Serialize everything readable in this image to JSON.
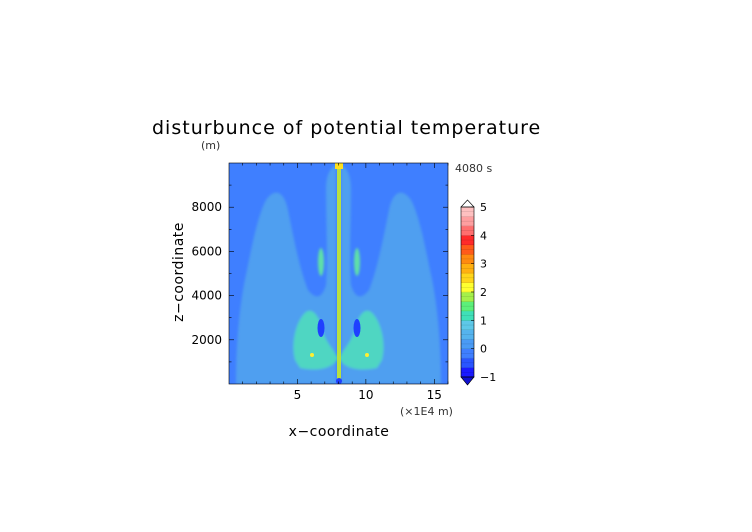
{
  "chart_data": {
    "type": "heatmap",
    "title": "disturbunce of potential temperature",
    "ylabel": "z−coordinate",
    "yunit": "(m)",
    "xlabel": "x−coordinate",
    "xunit": "(×1E4 m)",
    "time_label": "4080 s",
    "xlim": [
      0,
      16
    ],
    "ylim": [
      0,
      10000
    ],
    "x_ticks": [
      "5",
      "10",
      "15"
    ],
    "y_ticks": [
      "2000",
      "4000",
      "6000",
      "8000"
    ],
    "colorbar": {
      "min": -1,
      "max": 5,
      "step": 0.25,
      "tick_labels": [
        "5",
        "4",
        "3",
        "2",
        "1",
        "0",
        "−1"
      ],
      "colors": [
        "#1a1aff",
        "#2a55ff",
        "#3f7fff",
        "#4a9bf5",
        "#55b3ee",
        "#5ec8e8",
        "#3fe0b8",
        "#5cf07a",
        "#a5f04a",
        "#ffff30",
        "#ffd51a",
        "#ffb010",
        "#ff8a10",
        "#ff5a1a",
        "#ff2a2a",
        "#ff6f6f",
        "#ff9fa0",
        "#ffc0c0"
      ]
    },
    "features": [
      {
        "kind": "background",
        "value": 0.1,
        "x": [
          0,
          16
        ],
        "z": [
          0,
          10000
        ]
      },
      {
        "kind": "plume",
        "side": "left",
        "value": 0.3,
        "x_range": [
          1.0,
          7.6
        ],
        "z_range": [
          0,
          8400
        ]
      },
      {
        "kind": "plume",
        "side": "right",
        "value": 0.3,
        "x_range": [
          8.4,
          15.0
        ],
        "z_range": [
          0,
          8400
        ]
      },
      {
        "kind": "core",
        "side": "left",
        "value": 1.0,
        "x_range": [
          4.5,
          7.7
        ],
        "z_range": [
          700,
          3300
        ]
      },
      {
        "kind": "core",
        "side": "right",
        "value": 1.0,
        "x_range": [
          8.3,
          11.5
        ],
        "z_range": [
          700,
          3300
        ]
      },
      {
        "kind": "updraft",
        "value": 2.0,
        "x": 8.0,
        "z_range": [
          300,
          10000
        ]
      },
      {
        "kind": "cold_spot",
        "value": -0.8,
        "x": 6.8,
        "z": 2500
      },
      {
        "kind": "cold_spot",
        "value": -0.8,
        "x": 9.2,
        "z": 2500
      },
      {
        "kind": "warm_spot",
        "value": 2.0,
        "x": 6.0,
        "z": 1300
      },
      {
        "kind": "warm_spot",
        "value": 2.0,
        "x": 10.0,
        "z": 1300
      }
    ]
  }
}
